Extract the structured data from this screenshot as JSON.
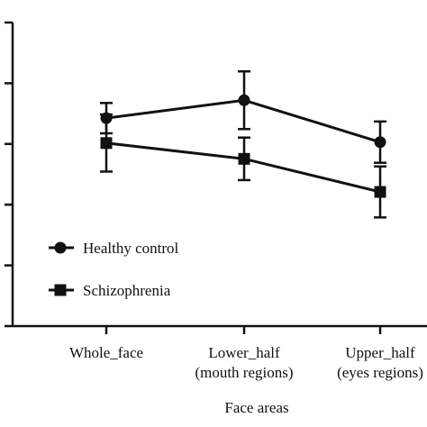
{
  "chart_data": {
    "type": "line",
    "categories": [
      "Whole_face",
      "Lower_half\n(mouth regions)",
      "Upper_half\n(eyes regions)"
    ],
    "xlabel": "Face areas",
    "ylabel": "",
    "ylim": [
      0,
      1
    ],
    "grid": false,
    "legend_position": "bottom-left",
    "series": [
      {
        "name": "Healthy control",
        "marker": "circle",
        "values": [
          0.685,
          0.744,
          0.606
        ],
        "error": [
          0.05,
          0.095,
          0.068
        ]
      },
      {
        "name": "Schizophrenia",
        "marker": "square",
        "values": [
          0.603,
          0.551,
          0.442
        ],
        "error": [
          0.094,
          0.07,
          0.084
        ]
      }
    ],
    "colors": {
      "line": "#111111"
    }
  }
}
